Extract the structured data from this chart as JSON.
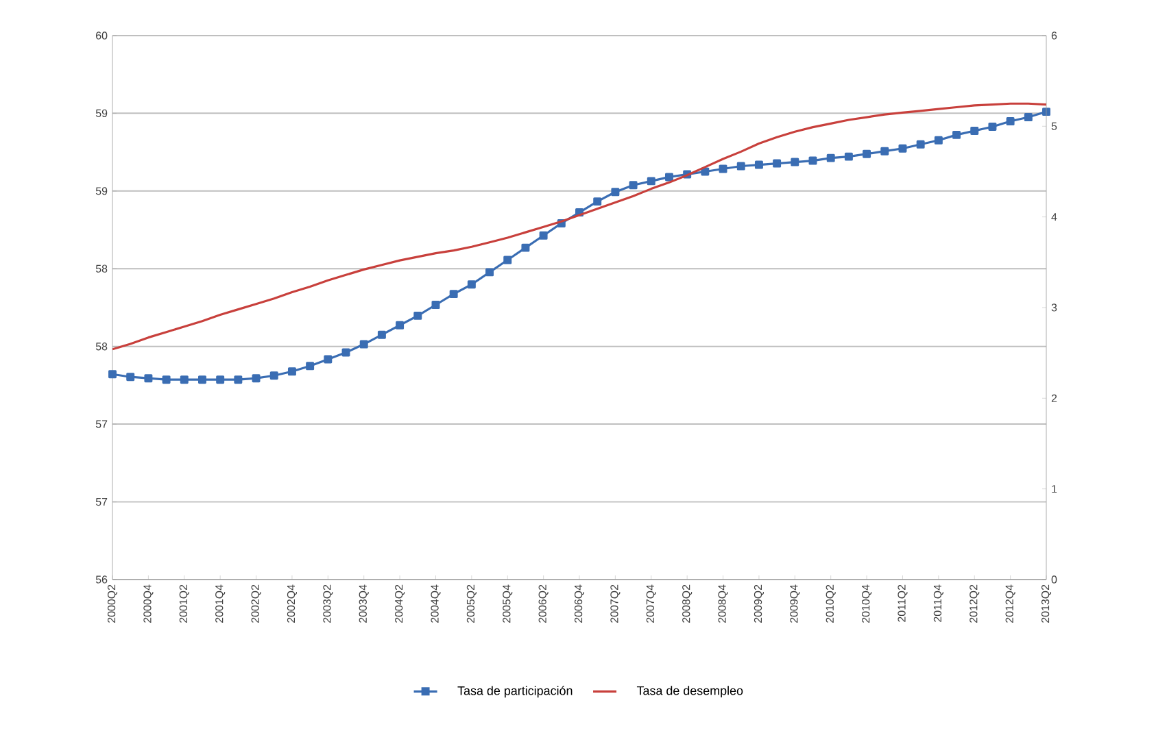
{
  "chart_data": {
    "type": "line",
    "categories": [
      "2000Q2",
      null,
      "2000Q4",
      null,
      "2001Q2",
      null,
      "2001Q4",
      null,
      "2002Q2",
      null,
      "2002Q4",
      null,
      "2003Q2",
      null,
      "2003Q4",
      null,
      "2004Q2",
      null,
      "2004Q4",
      null,
      "2005Q2",
      null,
      "2005Q4",
      null,
      "2006Q2",
      null,
      "2006Q4",
      null,
      "2007Q2",
      null,
      "2007Q4",
      null,
      "2008Q2",
      null,
      "2008Q4",
      null,
      "2009Q2",
      null,
      "2009Q4",
      null,
      "2010Q2",
      null,
      "2010Q4",
      null,
      "2011Q2",
      null,
      "2011Q4",
      null,
      "2012Q2",
      null,
      "2012Q4",
      null,
      "2013Q2"
    ],
    "series": [
      {
        "name": "Tasa de participación",
        "color": "#3a6db3",
        "marker": "square",
        "values": [
          57.51,
          57.49,
          57.48,
          57.47,
          57.47,
          57.47,
          57.47,
          57.47,
          57.48,
          57.5,
          57.53,
          57.57,
          57.62,
          57.67,
          57.73,
          57.8,
          57.87,
          57.94,
          58.02,
          58.1,
          58.17,
          58.26,
          58.35,
          58.44,
          58.53,
          58.62,
          58.7,
          58.78,
          58.85,
          58.9,
          58.93,
          58.96,
          58.98,
          59.0,
          59.02,
          59.04,
          59.05,
          59.06,
          59.07,
          59.08,
          59.1,
          59.11,
          59.13,
          59.15,
          59.17,
          59.2,
          59.23,
          59.27,
          59.3,
          59.33,
          59.37,
          59.4,
          59.44
        ]
      },
      {
        "name": "Tasa de desempleo",
        "color": "#c8403c",
        "marker": "none",
        "axis": "y2",
        "values": [
          2.54,
          2.6,
          2.67,
          2.73,
          2.79,
          2.85,
          2.92,
          2.98,
          3.04,
          3.1,
          3.17,
          3.23,
          3.3,
          3.36,
          3.42,
          3.47,
          3.52,
          3.56,
          3.6,
          3.63,
          3.67,
          3.72,
          3.77,
          3.83,
          3.89,
          3.95,
          4.02,
          4.09,
          4.16,
          4.23,
          4.31,
          4.38,
          4.46,
          4.55,
          4.64,
          4.72,
          4.81,
          4.88,
          4.94,
          4.99,
          5.03,
          5.07,
          5.1,
          5.13,
          5.15,
          5.17,
          5.19,
          5.21,
          5.23,
          5.24,
          5.25,
          5.25,
          5.24
        ]
      }
    ],
    "ylim": [
      56,
      60
    ],
    "yticks": [
      56,
      {
        "value": 56.571,
        "label": "57"
      },
      {
        "value": 57.143,
        "label": "57"
      },
      {
        "value": 57.714,
        "label": "58"
      },
      {
        "value": 58.286,
        "label": "58"
      },
      {
        "value": 58.857,
        "label": "59"
      },
      {
        "value": 59.429,
        "label": "59"
      },
      60
    ],
    "y2lim": [
      0,
      6
    ],
    "y2ticks": [
      0,
      1,
      2,
      3,
      4,
      5,
      6
    ],
    "grid": "y",
    "legend": "bottom"
  }
}
